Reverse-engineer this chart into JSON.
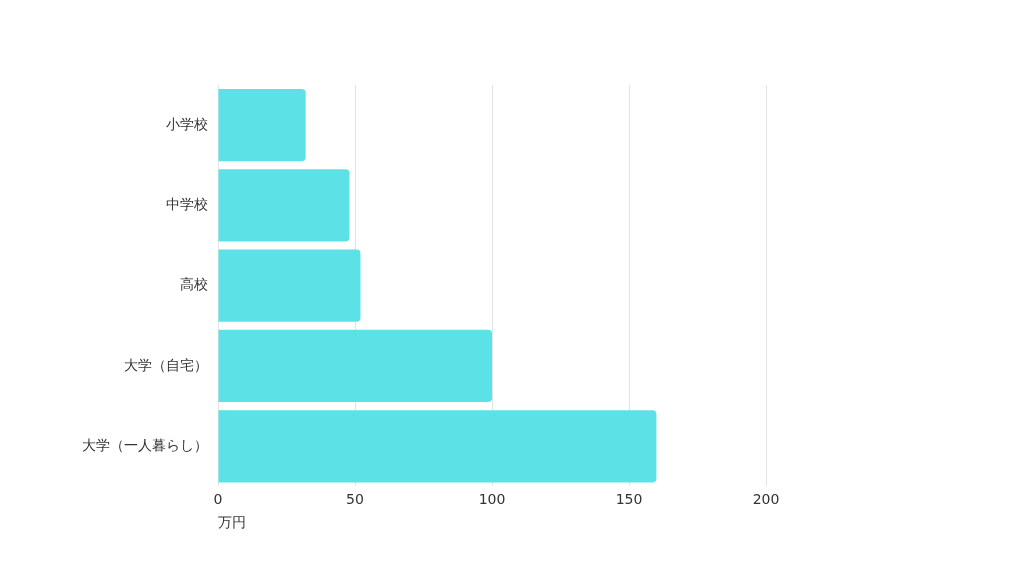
{
  "chart_data": {
    "type": "bar",
    "orientation": "horizontal",
    "xlabel": "万円",
    "categories": [
      "小学校",
      "中学校",
      "高校",
      "大学（自宅）",
      "大学（一人暮らし）"
    ],
    "values": [
      32,
      48,
      52,
      100,
      160
    ],
    "color": "#5ce1e6",
    "xlim": [
      0,
      200
    ],
    "xticks": [
      0,
      50,
      100,
      150,
      200
    ],
    "grid": "x",
    "legend": false
  }
}
